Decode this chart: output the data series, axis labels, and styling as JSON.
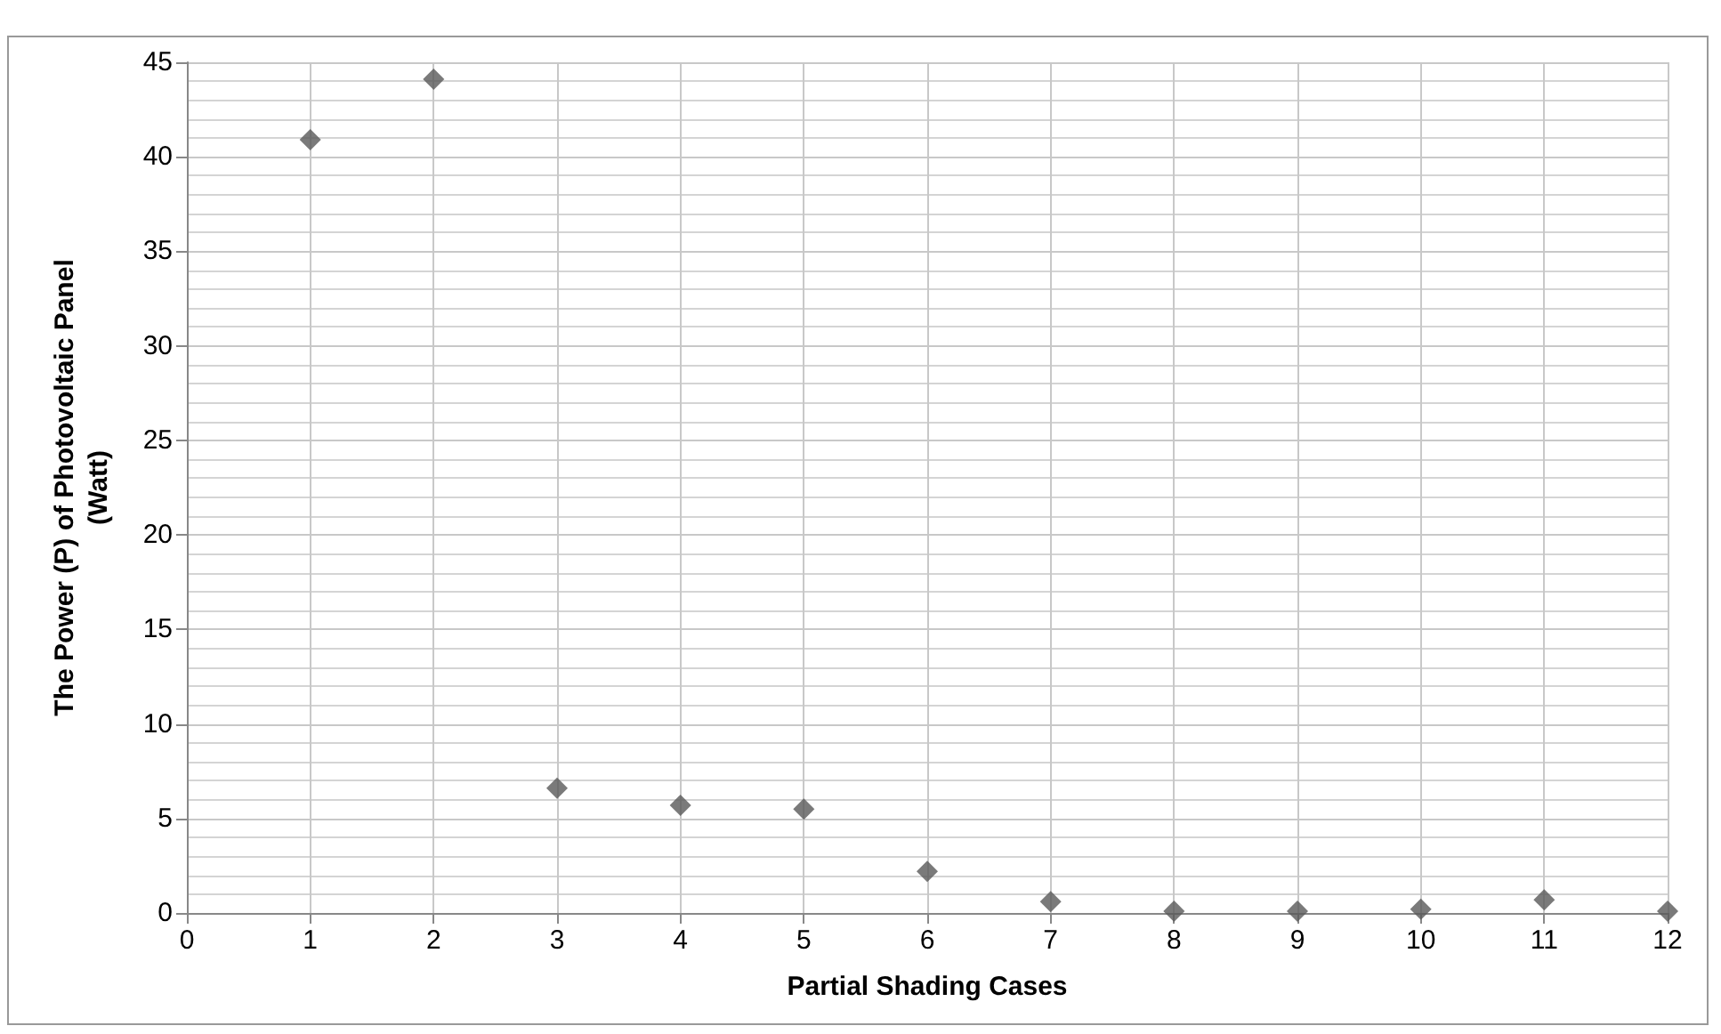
{
  "chart_data": {
    "type": "scatter",
    "xlabel": "Partial Shading Cases",
    "ylabel": "The Power (P) of Photovoltaic Panel\n(Watt)",
    "x": [
      1,
      2,
      3,
      4,
      5,
      6,
      7,
      8,
      9,
      10,
      11,
      12
    ],
    "values": [
      40.9,
      44.1,
      6.6,
      5.7,
      5.5,
      2.2,
      0.6,
      0.1,
      0.1,
      0.2,
      0.7,
      0.1
    ],
    "color": "#595959",
    "marker": "diamond",
    "grid": true,
    "xlim": [
      0,
      12
    ],
    "xticks": [
      0,
      1,
      2,
      3,
      4,
      5,
      6,
      7,
      8,
      9,
      10,
      11,
      12
    ],
    "ylim": [
      0,
      45
    ],
    "yticks": [
      0,
      5,
      10,
      15,
      20,
      25,
      30,
      35,
      40,
      45
    ]
  }
}
